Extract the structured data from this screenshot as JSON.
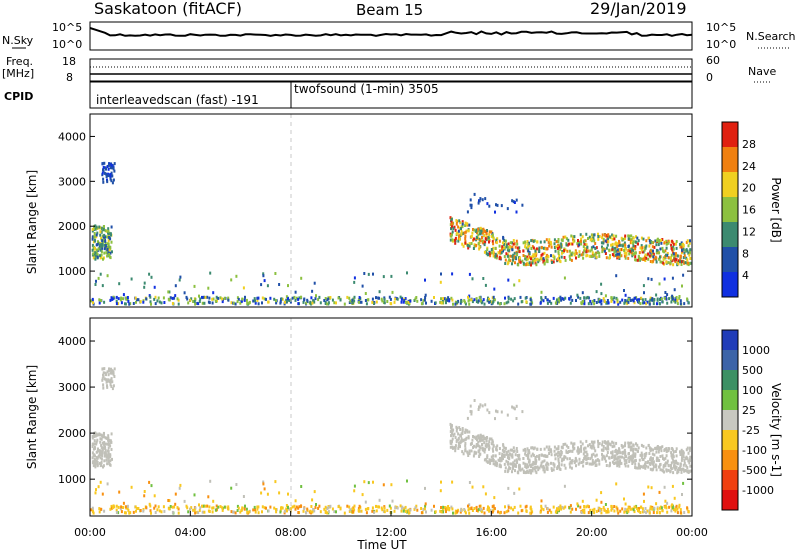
{
  "header": {
    "station": "Saskatoon (fitACF)",
    "beam": "Beam 15",
    "date": "29/Jan/2019"
  },
  "noise_panel": {
    "left_label": "N.Sky",
    "right_label": "N.Search",
    "y_ticks_left": [
      "10^5",
      "10^0"
    ],
    "y_ticks_right": [
      "10^5",
      "10^0"
    ]
  },
  "freq_panel": {
    "left_label_top": "Freq.",
    "left_label_unit": "[MHz]",
    "right_label": "Nave",
    "y_ticks_left": [
      "18",
      "8"
    ],
    "y_ticks_right": [
      "60",
      "0"
    ]
  },
  "cpid_panel": {
    "label": "CPID",
    "segments": [
      {
        "name": "interleavedscan (fast) -191",
        "start_hour": 0,
        "end_hour": 8
      },
      {
        "name": "twofsound (1-min) 3505",
        "start_hour": 8,
        "end_hour": 24
      }
    ]
  },
  "chart_data": [
    {
      "type": "heatmap",
      "title": "Power",
      "ylabel": "Slant Range [km]",
      "xlabel": "",
      "xlim": [
        0,
        24
      ],
      "ylim": [
        200,
        4500
      ],
      "yticks": [
        1000,
        2000,
        3000,
        4000
      ],
      "colorbar": {
        "label": "Power [dB]",
        "ticks": [
          "4",
          "8",
          "12",
          "16",
          "20",
          "24",
          "28"
        ],
        "range": [
          0,
          32
        ],
        "colors": [
          "#1030e0",
          "#2050a8",
          "#3c8a70",
          "#8cc040",
          "#f0d020",
          "#f08010",
          "#e02010"
        ]
      }
    },
    {
      "type": "heatmap",
      "title": "Velocity",
      "ylabel": "Slant Range [km]",
      "xlabel": "Time UT",
      "xlim": [
        0,
        24
      ],
      "ylim": [
        200,
        4500
      ],
      "yticks": [
        1000,
        2000,
        3000,
        4000
      ],
      "xticks": [
        "00:00",
        "04:00",
        "08:00",
        "12:00",
        "16:00",
        "20:00",
        "00:00"
      ],
      "ground_scatter_color": "#c0c0b8",
      "colorbar": {
        "label": "Velocity [m s-1]",
        "ticks": [
          "1000",
          "500",
          "100",
          "25",
          "-25",
          "-100",
          "-500",
          "-1000"
        ],
        "colors": [
          "#203cb8",
          "#3c64a8",
          "#3c9064",
          "#70c040",
          "#c8c8c0",
          "#f8c820",
          "#f89010",
          "#f04010",
          "#e01010"
        ]
      }
    }
  ]
}
